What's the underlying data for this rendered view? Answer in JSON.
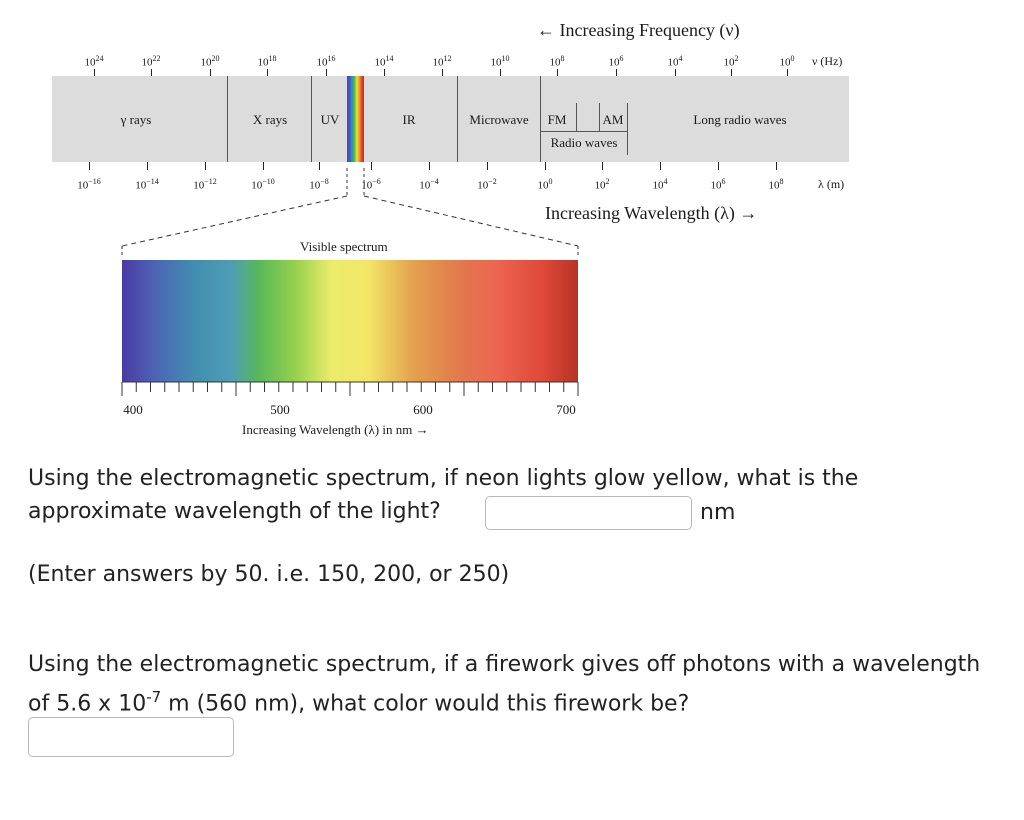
{
  "spectrum": {
    "frequency_title": "← Increasing Frequency (ν)",
    "frequency_unit": "ν (Hz)",
    "frequency_ticks": [
      {
        "base": "10",
        "exp": "24"
      },
      {
        "base": "10",
        "exp": "22"
      },
      {
        "base": "10",
        "exp": "20"
      },
      {
        "base": "10",
        "exp": "18"
      },
      {
        "base": "10",
        "exp": "16"
      },
      {
        "base": "10",
        "exp": "14"
      },
      {
        "base": "10",
        "exp": "12"
      },
      {
        "base": "10",
        "exp": "10"
      },
      {
        "base": "10",
        "exp": "8"
      },
      {
        "base": "10",
        "exp": "6"
      },
      {
        "base": "10",
        "exp": "4"
      },
      {
        "base": "10",
        "exp": "2"
      },
      {
        "base": "10",
        "exp": "0"
      }
    ],
    "wavelength_ticks": [
      {
        "base": "10",
        "exp": "−16"
      },
      {
        "base": "10",
        "exp": "−14"
      },
      {
        "base": "10",
        "exp": "−12"
      },
      {
        "base": "10",
        "exp": "−10"
      },
      {
        "base": "10",
        "exp": "−8"
      },
      {
        "base": "10",
        "exp": "−6"
      },
      {
        "base": "10",
        "exp": "−4"
      },
      {
        "base": "10",
        "exp": "−2"
      },
      {
        "base": "10",
        "exp": "0"
      },
      {
        "base": "10",
        "exp": "2"
      },
      {
        "base": "10",
        "exp": "4"
      },
      {
        "base": "10",
        "exp": "6"
      },
      {
        "base": "10",
        "exp": "8"
      }
    ],
    "wavelength_unit": "λ (m)",
    "wavelength_title": "Increasing Wavelength (λ) →",
    "regions": {
      "gamma": "γ rays",
      "xray": "X rays",
      "uv": "UV",
      "ir": "IR",
      "microwave": "Microwave",
      "fm": "FM",
      "am": "AM",
      "radio": "Radio waves",
      "long_radio": "Long radio waves"
    }
  },
  "visible": {
    "title": "Visible spectrum",
    "ticks": [
      "400",
      "500",
      "600",
      "700"
    ],
    "axis_label": "Increasing Wavelength (λ) in nm →"
  },
  "question1": {
    "text": "Using the electromagnetic spectrum, if neon lights glow yellow, what is the approximate wavelength of the light?",
    "value": "",
    "unit": "nm",
    "hint": "(Enter answers by 50. i.e. 150, 200, or 250)"
  },
  "question2": {
    "text_before": "Using the electromagnetic spectrum, if a firework gives off photons with a wavelength of 5.6 x 10",
    "exponent": "-7",
    "text_after": " m (560 nm), what color would this firework be?",
    "value": ""
  },
  "colors": {
    "band": "#dcdcdc",
    "input_border": "#b9b9b9"
  }
}
